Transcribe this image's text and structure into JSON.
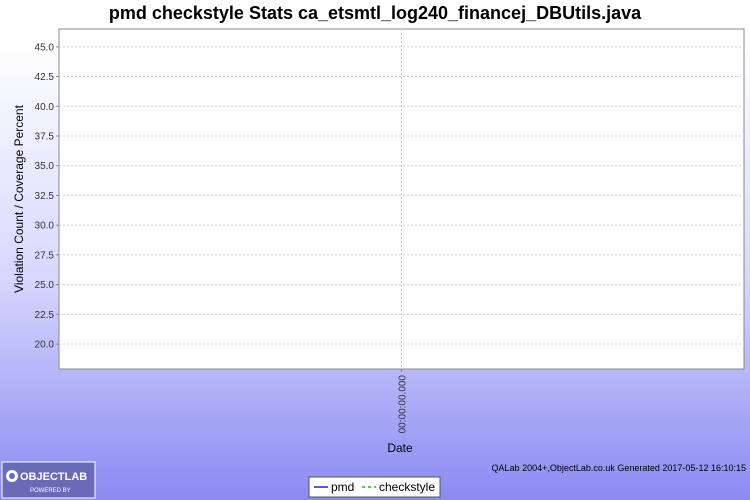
{
  "chart_data": {
    "type": "line",
    "title": "pmd checkstyle  Stats ca_etsmtl_log240_financej_DBUtils.java",
    "xlabel": "Date",
    "ylabel": "Violation Count / Coverage Percent",
    "x_categories": [
      "00:00:00.000"
    ],
    "ylim": [
      17.9,
      46.5
    ],
    "yticks": [
      "20.0",
      "22.5",
      "25.0",
      "27.5",
      "30.0",
      "32.5",
      "35.0",
      "37.5",
      "40.0",
      "42.5",
      "45.0"
    ],
    "grid": true,
    "legend_position": "bottom-center",
    "series": [
      {
        "name": "pmd",
        "color": "#5555ff",
        "dash": "solid",
        "values": []
      },
      {
        "name": "checkstyle",
        "color": "#55cc55",
        "dash": "dashed",
        "values": []
      }
    ]
  },
  "footer": {
    "credit": "QALab 2004+,ObjectLab.co.uk  Generated 2017-05-12 16:10:15"
  },
  "logo": {
    "name": "OBJECTLAB",
    "tagline": "POWERED BY"
  }
}
